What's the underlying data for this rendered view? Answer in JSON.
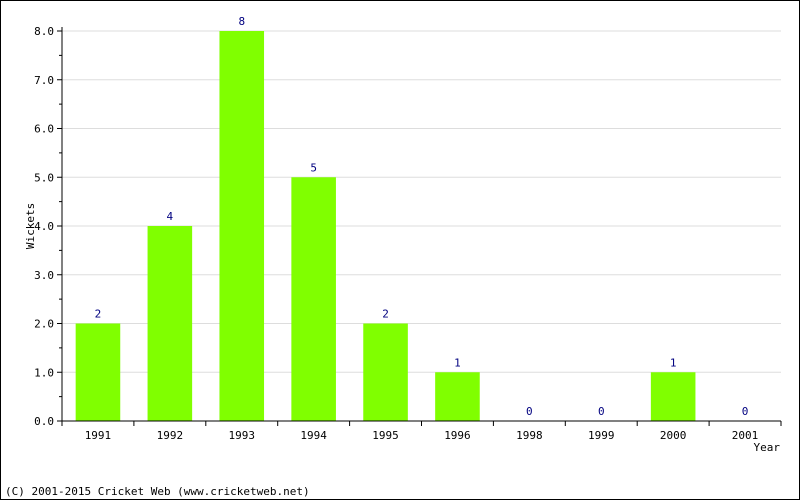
{
  "chart_data": {
    "type": "bar",
    "title": "",
    "xlabel": "Year",
    "ylabel": "Wickets",
    "categories": [
      "1991",
      "1992",
      "1993",
      "1994",
      "1995",
      "1996",
      "1998",
      "1999",
      "2000",
      "2001"
    ],
    "values": [
      2,
      4,
      8,
      5,
      2,
      1,
      0,
      0,
      1,
      0
    ],
    "ylim": [
      0,
      8
    ],
    "yticks": [
      "0.0",
      "1.0",
      "2.0",
      "3.0",
      "4.0",
      "5.0",
      "6.0",
      "7.0",
      "8.0"
    ],
    "grid": true,
    "legend": "none",
    "bar_color": "#80ff00",
    "label_color": "#000080"
  },
  "footer": {
    "copyright": "(C) 2001-2015 Cricket Web (www.cricketweb.net)"
  }
}
